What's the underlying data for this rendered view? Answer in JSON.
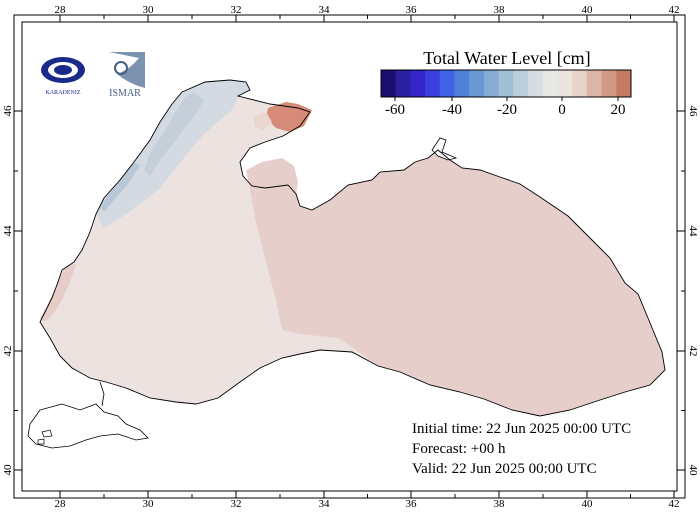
{
  "map": {
    "legend": {
      "title": "Total Water Level [cm]",
      "tick_labels": [
        "-60",
        "-40",
        "-20",
        "0",
        "20"
      ],
      "colors": [
        "#1a0f6e",
        "#2a1f9c",
        "#3525c8",
        "#3b3fe0",
        "#3e63e6",
        "#4f80da",
        "#6a98d2",
        "#86acd6",
        "#a2bfd8",
        "#bccfdc",
        "#d4dde2",
        "#e8e8e6",
        "#eee4df",
        "#e8d2ca",
        "#ddb5a6",
        "#d29a86",
        "#c47b64"
      ]
    },
    "axes": {
      "x_ticks": [
        "28",
        "30",
        "32",
        "34",
        "36",
        "38",
        "40",
        "42"
      ],
      "y_ticks": [
        "40",
        "42",
        "44",
        "46"
      ]
    },
    "info": {
      "initial": "Initial time: 22 Jun 2025 00:00 UTC",
      "forecast": "Forecast: +00 h",
      "valid": "Valid: 22 Jun 2025 00:00 UTC"
    },
    "logos": {
      "left_text": "KARADENIZ",
      "right_text": "ISMAR"
    }
  }
}
